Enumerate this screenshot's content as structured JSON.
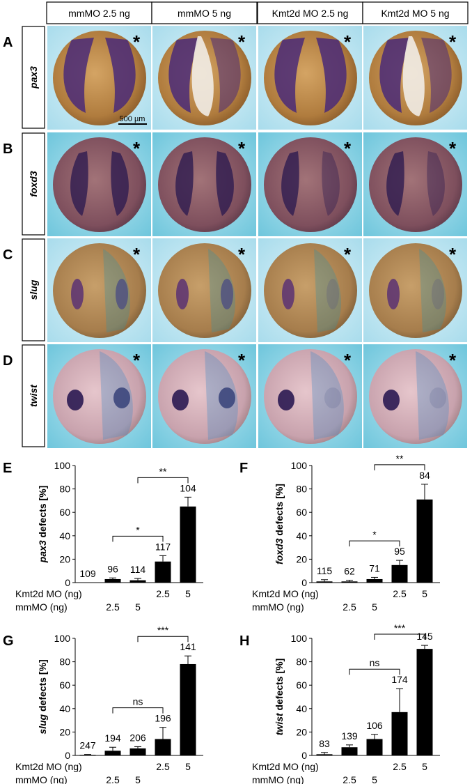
{
  "columns": [
    "mmMO 2.5 ng",
    "mmMO 5 ng",
    "Kmt2d MO 2.5 ng",
    "Kmt2d MO 5 ng"
  ],
  "rows": [
    {
      "letter": "A",
      "gene": "pax3"
    },
    {
      "letter": "B",
      "gene": "foxd3"
    },
    {
      "letter": "C",
      "gene": "slug"
    },
    {
      "letter": "D",
      "gene": "twist"
    }
  ],
  "asterisk": "*",
  "scale_bar": "500 µm",
  "chart_data": [
    {
      "panel": "E",
      "type": "bar",
      "gene": "pax3",
      "ylabel_suffix": "defects [%]",
      "ylim": [
        0,
        100
      ],
      "yticks": [
        0,
        20,
        40,
        60,
        80,
        100
      ],
      "values": [
        0,
        3,
        2,
        18,
        65
      ],
      "errors": [
        0,
        1,
        1.5,
        5,
        8
      ],
      "n_labels": [
        "109",
        "96",
        "114",
        "117",
        "104"
      ],
      "kmt2d_mo": [
        "",
        "",
        "",
        "2.5",
        "5"
      ],
      "mmmo": [
        "",
        "2.5",
        "5",
        "",
        ""
      ],
      "comparisons": [
        {
          "from": 1,
          "to": 3,
          "label": "*"
        },
        {
          "from": 2,
          "to": 4,
          "label": "**"
        }
      ]
    },
    {
      "panel": "F",
      "type": "bar",
      "gene": "foxd3",
      "ylabel_suffix": "defects [%]",
      "ylim": [
        0,
        100
      ],
      "yticks": [
        0,
        20,
        40,
        60,
        80,
        100
      ],
      "values": [
        1,
        1,
        3,
        15,
        71
      ],
      "errors": [
        1.5,
        1,
        1.5,
        4,
        13
      ],
      "n_labels": [
        "115",
        "62",
        "71",
        "95",
        "84"
      ],
      "kmt2d_mo": [
        "",
        "",
        "",
        "2.5",
        "5"
      ],
      "mmmo": [
        "",
        "2.5",
        "5",
        "",
        ""
      ],
      "comparisons": [
        {
          "from": 1,
          "to": 3,
          "label": "*"
        },
        {
          "from": 2,
          "to": 4,
          "label": "**"
        }
      ]
    },
    {
      "panel": "G",
      "type": "bar",
      "gene": "slug",
      "ylabel_suffix": "defects [%]",
      "ylim": [
        0,
        100
      ],
      "yticks": [
        0,
        20,
        40,
        60,
        80,
        100
      ],
      "values": [
        0.5,
        4,
        6,
        14,
        78
      ],
      "errors": [
        0.3,
        3,
        1.5,
        10,
        7
      ],
      "n_labels": [
        "247",
        "194",
        "206",
        "196",
        "141"
      ],
      "kmt2d_mo": [
        "",
        "",
        "",
        "2.5",
        "5"
      ],
      "mmmo": [
        "",
        "2.5",
        "5",
        "",
        ""
      ],
      "comparisons": [
        {
          "from": 1,
          "to": 3,
          "label": "ns"
        },
        {
          "from": 2,
          "to": 4,
          "label": "***"
        }
      ]
    },
    {
      "panel": "H",
      "type": "bar",
      "gene": "twist",
      "ylabel_suffix": "defects [%]",
      "ylim": [
        0,
        100
      ],
      "yticks": [
        0,
        20,
        40,
        60,
        80,
        100
      ],
      "values": [
        1,
        7,
        14,
        37,
        91
      ],
      "errors": [
        1.5,
        2,
        4,
        20,
        3
      ],
      "n_labels": [
        "83",
        "139",
        "106",
        "174",
        "145"
      ],
      "kmt2d_mo": [
        "",
        "",
        "",
        "2.5",
        "5"
      ],
      "mmmo": [
        "",
        "2.5",
        "5",
        "",
        ""
      ],
      "comparisons": [
        {
          "from": 1,
          "to": 3,
          "label": "ns"
        },
        {
          "from": 2,
          "to": 4,
          "label": "***"
        }
      ]
    }
  ],
  "row_labels": {
    "kmt2d": "Kmt2d MO (ng)",
    "mmmo": "mmMO (ng)"
  }
}
